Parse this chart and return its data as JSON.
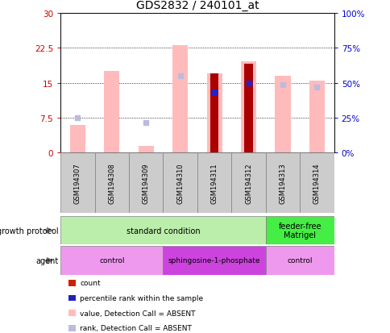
{
  "title": "GDS2832 / 240101_at",
  "samples": [
    "GSM194307",
    "GSM194308",
    "GSM194309",
    "GSM194310",
    "GSM194311",
    "GSM194312",
    "GSM194313",
    "GSM194314"
  ],
  "ylim_left": [
    0,
    30
  ],
  "ylim_right": [
    0,
    100
  ],
  "yticks_left": [
    0,
    7.5,
    15,
    22.5,
    30
  ],
  "yticks_right": [
    0,
    25,
    50,
    75,
    100
  ],
  "ytick_labels_left": [
    "0",
    "7.5",
    "15",
    "22.5",
    "30"
  ],
  "ytick_labels_right": [
    "0%",
    "25%",
    "50%",
    "75%",
    "100%"
  ],
  "pink_bars": [
    6.0,
    17.5,
    1.5,
    23.0,
    17.0,
    19.5,
    16.5,
    15.5
  ],
  "red_bars": [
    null,
    null,
    null,
    null,
    17.0,
    19.0,
    null,
    null
  ],
  "blue_squares": [
    null,
    null,
    null,
    null,
    13.0,
    null,
    null,
    null
  ],
  "blue_sq_on_red": [
    null,
    null,
    null,
    null,
    null,
    15.0,
    null,
    null
  ],
  "pink_squares": [
    7.5,
    null,
    6.5,
    16.5,
    null,
    null,
    14.5,
    14.0
  ],
  "left_axis_color": "#cc0000",
  "right_axis_color": "#0000cc",
  "pink_bar_color": "#ffbbbb",
  "red_bar_color": "#aa0000",
  "blue_sq_color": "#2222cc",
  "pink_sq_color": "#bbbbdd",
  "gp_standard_color": "#bbeeaa",
  "gp_feeder_color": "#44ee44",
  "agent_control_color": "#ee99ee",
  "agent_sphingo_color": "#cc44dd",
  "legend_items": [
    {
      "color": "#cc2200",
      "label": "count"
    },
    {
      "color": "#2222bb",
      "label": "percentile rank within the sample"
    },
    {
      "color": "#ffbbbb",
      "label": "value, Detection Call = ABSENT"
    },
    {
      "color": "#bbbbdd",
      "label": "rank, Detection Call = ABSENT"
    }
  ],
  "title_fontsize": 10
}
